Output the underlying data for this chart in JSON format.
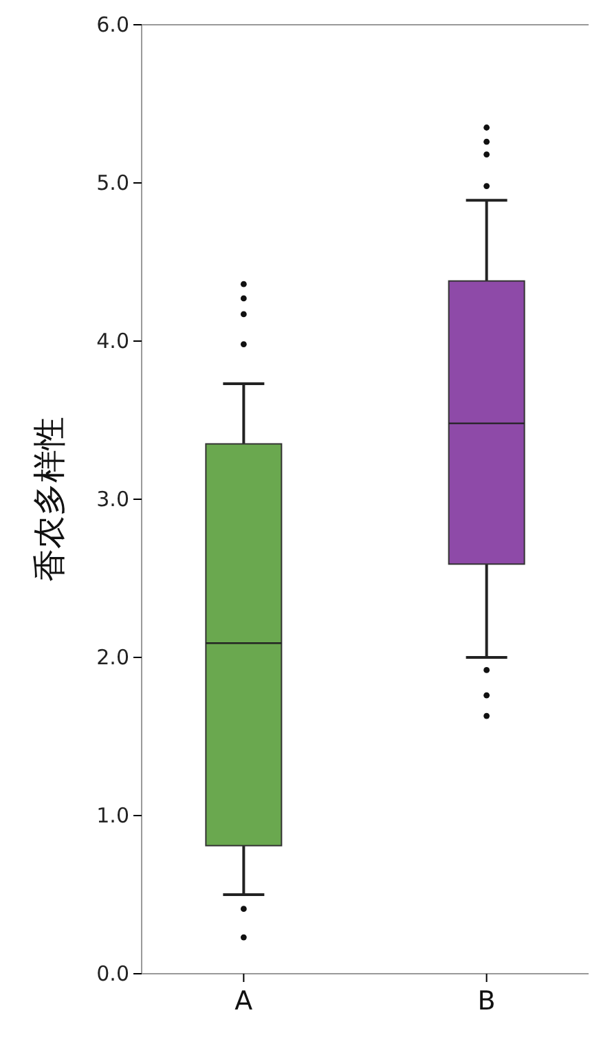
{
  "chart_data": {
    "type": "box",
    "ylabel": "香农多样性",
    "categories": [
      "A",
      "B"
    ],
    "ylim": [
      0,
      6
    ],
    "yticks": [
      {
        "value": 0,
        "label": "0.0"
      },
      {
        "value": 1,
        "label": "1.0"
      },
      {
        "value": 2,
        "label": "2.0"
      },
      {
        "value": 3,
        "label": "3.0"
      },
      {
        "value": 4,
        "label": "4.0"
      },
      {
        "value": 5,
        "label": "5.0"
      },
      {
        "value": 6,
        "label": "6.0"
      }
    ],
    "grid": false,
    "colors": [
      "#6aa84f",
      "#8e4aa8"
    ],
    "boxes": [
      {
        "low": 0.5,
        "q1": 0.81,
        "median": 2.09,
        "q3": 3.35,
        "high": 3.73,
        "outliers": [
          4.36,
          4.27,
          4.17,
          3.98,
          0.41,
          0.23
        ]
      },
      {
        "low": 2.0,
        "q1": 2.59,
        "median": 3.48,
        "q3": 4.38,
        "high": 4.89,
        "outliers": [
          5.35,
          5.26,
          5.18,
          4.98,
          1.92,
          1.76,
          1.63
        ]
      }
    ]
  }
}
